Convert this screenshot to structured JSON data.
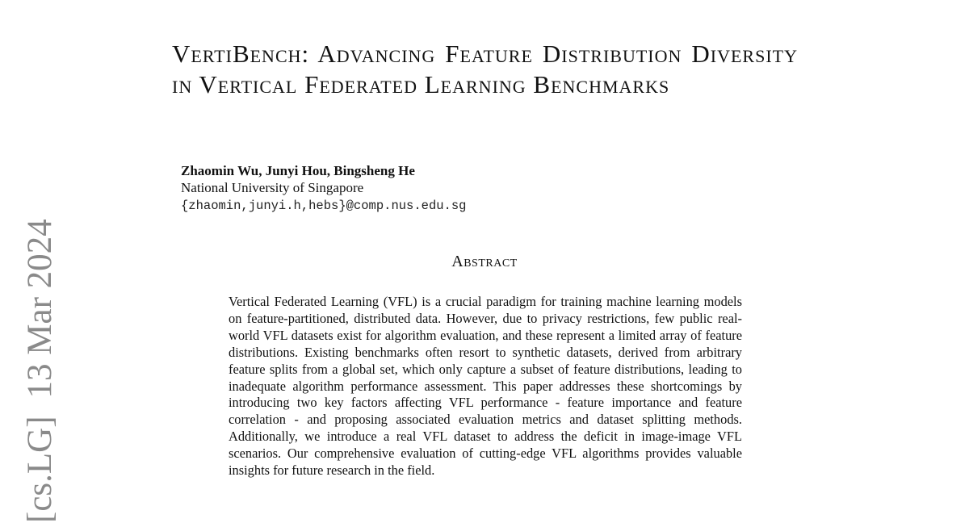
{
  "sidebar": {
    "category": "[cs.LG]",
    "date": "13 Mar 2024"
  },
  "paper": {
    "title": "VertiBench: Advancing Feature Distribution Diversity in Vertical Federated Learning Benchmarks",
    "authors": "Zhaomin Wu, Junyi Hou, Bingsheng He",
    "affiliation": "National University of Singapore",
    "email": "{zhaomin,junyi.h,hebs}@comp.nus.edu.sg",
    "abstract_heading": "Abstract",
    "abstract": "Vertical Federated Learning (VFL) is a crucial paradigm for training machine learning models on feature-partitioned, distributed data. However, due to privacy restrictions, few public real-world VFL datasets exist for algorithm evaluation, and these represent a limited array of feature distributions. Existing benchmarks often resort to synthetic datasets, derived from arbitrary feature splits from a global set, which only capture a subset of feature distributions, leading to inadequate algorithm performance assessment.  This paper addresses these shortcomings by introducing two key factors affecting VFL performance - feature importance and feature correlation - and proposing associated evaluation metrics and dataset splitting methods. Additionally, we introduce a real VFL dataset to address the deficit in image-image VFL scenarios. Our comprehensive evaluation of cutting-edge VFL algorithms provides valuable insights for future research in the field."
  }
}
